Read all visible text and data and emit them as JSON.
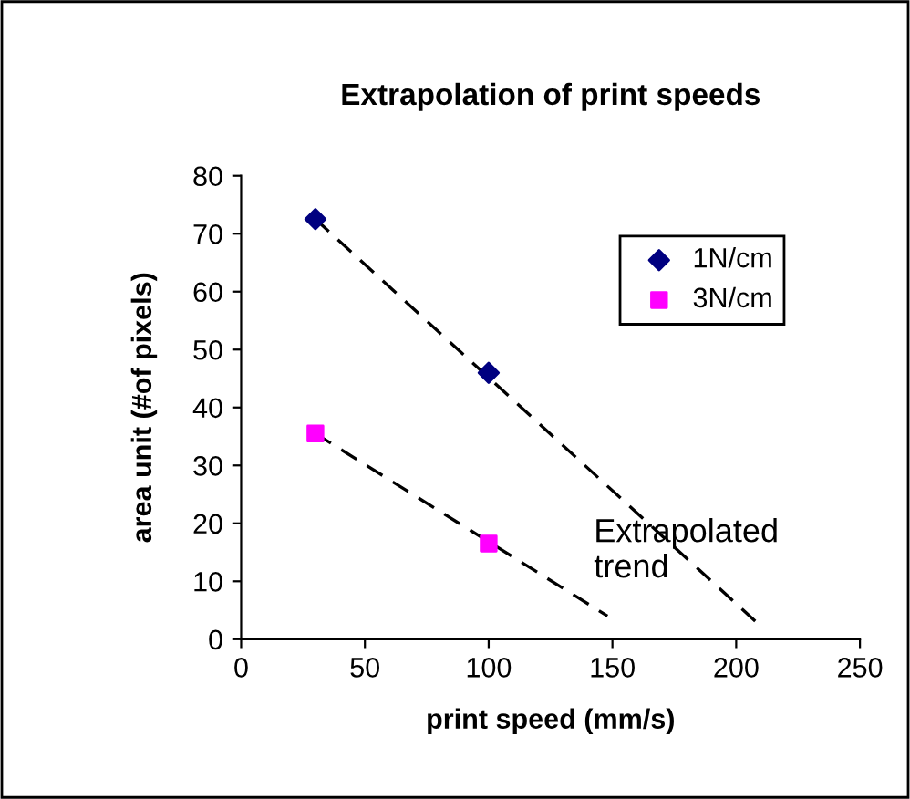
{
  "chart_data": {
    "type": "scatter",
    "title": "Extrapolation of print speeds",
    "xlabel": "print speed (mm/s)",
    "ylabel": "area unit (#of pixels)",
    "xlim": [
      0,
      250
    ],
    "xticks": [
      0,
      50,
      100,
      150,
      200,
      250
    ],
    "ylim": [
      0,
      80
    ],
    "yticks": [
      0,
      10,
      20,
      30,
      40,
      50,
      60,
      70,
      80
    ],
    "grid": false,
    "legend": "top right",
    "series": [
      {
        "name": "1N/cm",
        "color": "#000080",
        "marker": "diamond",
        "x": [
          30,
          100
        ],
        "values": [
          72.5,
          46
        ]
      },
      {
        "name": "3N/cm",
        "color": "#ff00ff",
        "marker": "square",
        "x": [
          30,
          100
        ],
        "values": [
          35.5,
          16.5
        ]
      },
      {
        "type": "line",
        "color": "#000000",
        "line_style": "dashed",
        "marker": "none",
        "x": [
          30,
          208
        ],
        "values": [
          72.5,
          3
        ]
      },
      {
        "type": "line",
        "color": "#000000",
        "line_style": "dashed",
        "marker": "none",
        "x": [
          30,
          148
        ],
        "values": [
          35.5,
          4
        ]
      }
    ],
    "annotations": [
      "Extrapolated\ntrend"
    ]
  }
}
